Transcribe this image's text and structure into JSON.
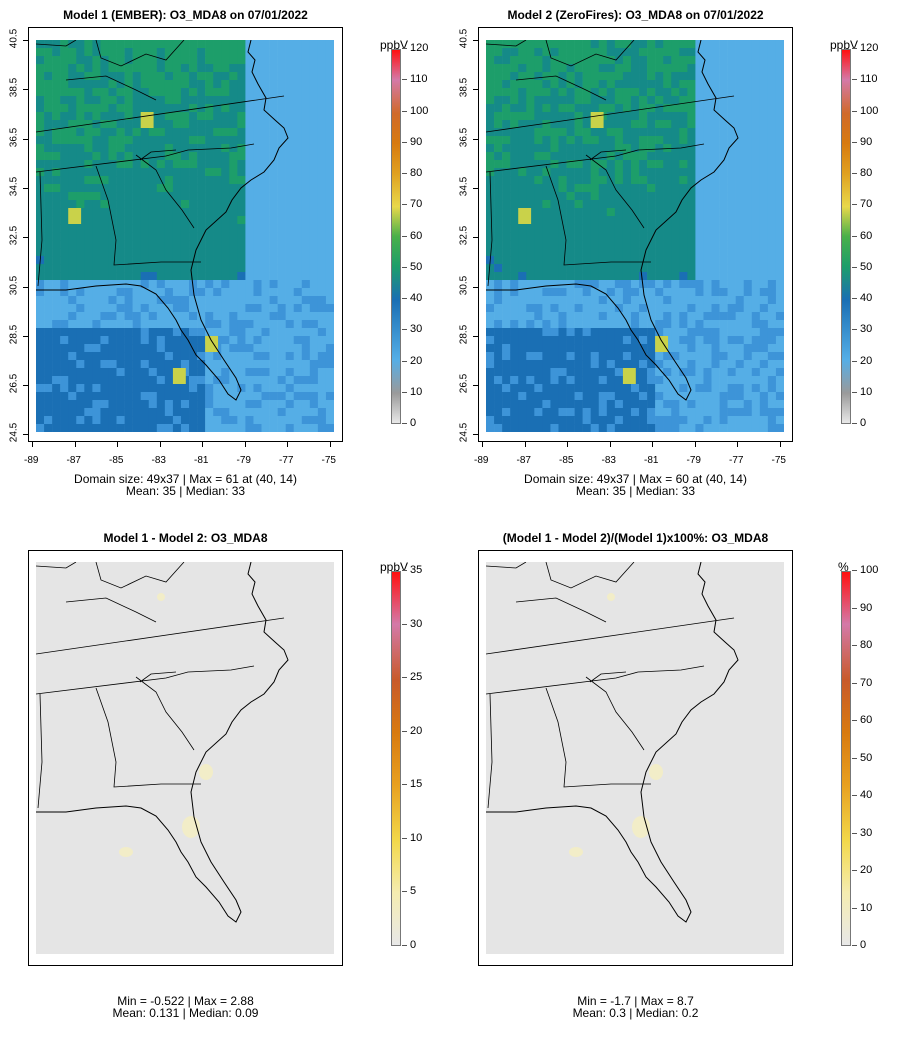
{
  "panels": [
    {
      "title": "Model 1 (EMBER): O3_MDA8 on 07/01/2022",
      "unit": "ppbV",
      "scale_max": 120,
      "colorbar_ticks": [
        "120",
        "110",
        "100",
        "90",
        "80",
        "70",
        "60",
        "50",
        "40",
        "30",
        "20",
        "10",
        "0"
      ],
      "stats_line1": "Domain size: 49x37 | Max = 61 at (40, 14)",
      "stats_line2": "Mean: 35 |  Median: 33",
      "x_ticks": [
        "-89",
        "-87",
        "-85",
        "-83",
        "-81",
        "-79",
        "-77",
        "-75"
      ],
      "y_ticks": [
        "40.5",
        "38.5",
        "36.5",
        "34.5",
        "32.5",
        "30.5",
        "28.5",
        "26.5",
        "24.5"
      ]
    },
    {
      "title": "Model 2 (ZeroFires): O3_MDA8 on 07/01/2022",
      "unit": "ppbV",
      "scale_max": 120,
      "colorbar_ticks": [
        "120",
        "110",
        "100",
        "90",
        "80",
        "70",
        "60",
        "50",
        "40",
        "30",
        "20",
        "10",
        "0"
      ],
      "stats_line1": "Domain size: 49x37 | Max = 60 at (40, 14)",
      "stats_line2": "Mean: 35 |  Median: 33",
      "x_ticks": [
        "-89",
        "-87",
        "-85",
        "-83",
        "-81",
        "-79",
        "-77",
        "-75"
      ],
      "y_ticks": [
        "40.5",
        "38.5",
        "36.5",
        "34.5",
        "32.5",
        "30.5",
        "28.5",
        "26.5",
        "24.5"
      ]
    },
    {
      "title": "Model 1 - Model 2: O3_MDA8",
      "unit": "ppbV",
      "scale_max": 35,
      "colorbar_ticks": [
        "35",
        "30",
        "25",
        "20",
        "15",
        "10",
        "5",
        "0"
      ],
      "stats_line1": "Min = -0.522 | Max = 2.88",
      "stats_line2": "Mean: 0.131 |  Median: 0.09"
    },
    {
      "title": "(Model 1 - Model 2)/(Model 1)x100%: O3_MDA8",
      "unit": "%",
      "scale_max": 100,
      "colorbar_ticks": [
        "100",
        "90",
        "80",
        "70",
        "60",
        "50",
        "40",
        "30",
        "20",
        "10",
        "0"
      ],
      "stats_line1": "Min = -1.7 | Max = 8.7",
      "stats_line2": "Mean: 0.3 |  Median: 0.2"
    }
  ],
  "colors": {
    "conc_low": "#55aee6",
    "conc_mid": "#1a6fb4",
    "conc_green": "#1d9e6a",
    "conc_hot": "#c9d24a",
    "diff_bg": "#e5e5e5",
    "diff_hint": "#f2edc8"
  }
}
